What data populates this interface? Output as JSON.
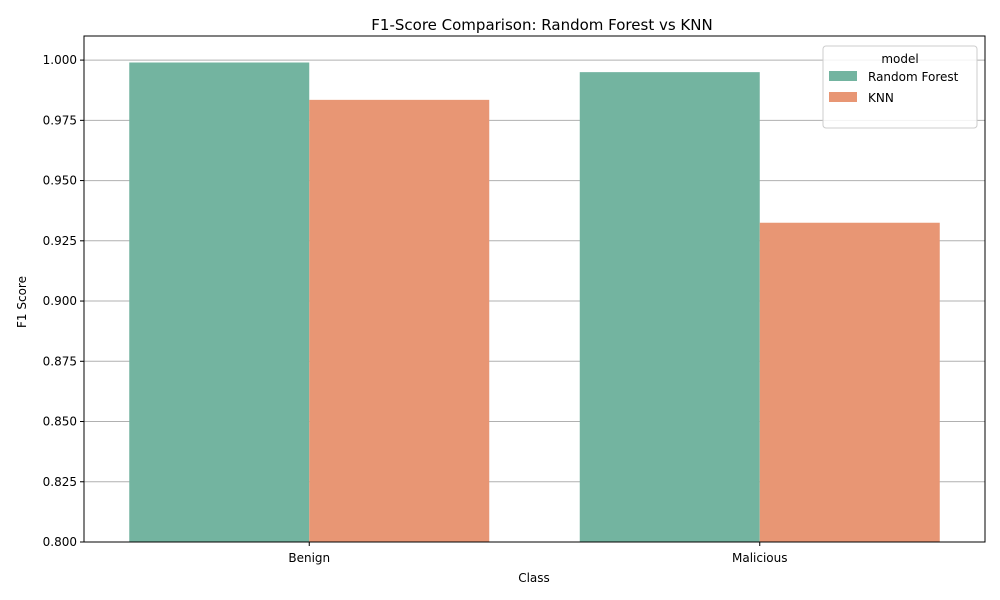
{
  "chart_data": {
    "type": "bar",
    "title": "F1-Score Comparison: Random Forest vs KNN",
    "xlabel": "Class",
    "ylabel": "F1 Score",
    "categories": [
      "Benign",
      "Malicious"
    ],
    "series": [
      {
        "name": "Random Forest",
        "values": [
          0.999,
          0.995
        ],
        "color": "#73b4a0"
      },
      {
        "name": "KNN",
        "values": [
          0.9835,
          0.9325
        ],
        "color": "#e89674"
      }
    ],
    "ylim": [
      0.8,
      1.01
    ],
    "yticks": [
      "0.800",
      "0.825",
      "0.850",
      "0.875",
      "0.900",
      "0.925",
      "0.950",
      "0.975",
      "1.000"
    ],
    "grid": "horizontal",
    "legend": {
      "title": "model",
      "placement": "top-right"
    }
  }
}
